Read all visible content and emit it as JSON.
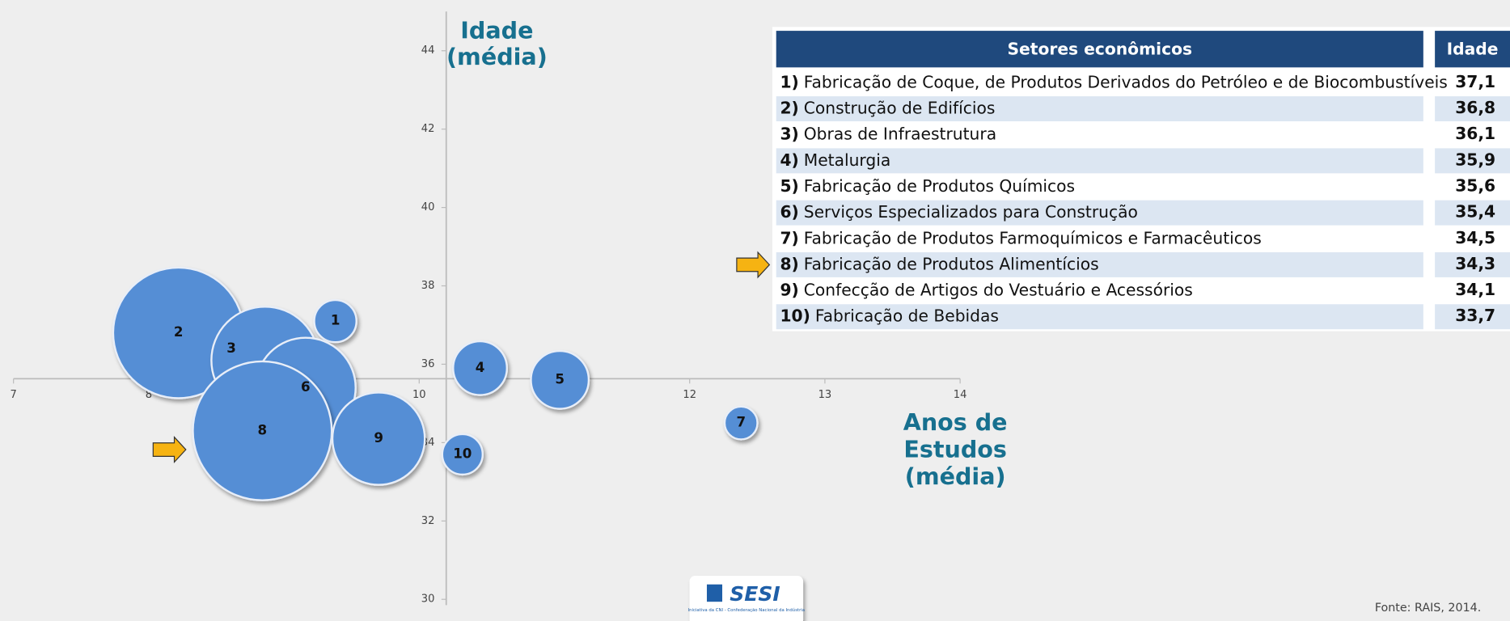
{
  "chart_data": {
    "type": "bubble",
    "y_label_lines": [
      "Idade",
      "(média)"
    ],
    "x_label_lines": [
      "Anos de",
      "Estudos",
      "(média)"
    ],
    "xlim": [
      7,
      14
    ],
    "xticks": [
      7,
      8,
      9,
      10,
      11,
      12,
      13,
      14
    ],
    "ylim": [
      30,
      45
    ],
    "yticks": [
      30,
      32,
      34,
      36,
      38,
      40,
      42,
      44
    ],
    "x_axis_position": 35.63,
    "y_axis_position": 10.2,
    "series": [
      {
        "color": "#558ed5",
        "labels": [
          "1",
          "2",
          "3",
          "4",
          "5",
          "6",
          "7",
          "8",
          "9",
          "10"
        ],
        "x": [
          9.38,
          8.22,
          8.86,
          10.45,
          11.04,
          9.16,
          12.38,
          8.84,
          9.7,
          10.32
        ],
        "y": [
          37.1,
          36.8,
          36.1,
          35.9,
          35.6,
          35.4,
          34.5,
          34.3,
          34.1,
          33.7
        ],
        "size": [
          4.8,
          46,
          31,
          7.8,
          9,
          27,
          2.9,
          52,
          23,
          4.4
        ]
      }
    ]
  },
  "table": {
    "header": [
      "Setores econômicos",
      "Idade"
    ],
    "rows": [
      [
        "1)",
        "Fabricação de Coque, de Produtos Derivados do Petróleo e de Biocombustíveis",
        "37,1"
      ],
      [
        "2)",
        "Construção de Edifícios",
        "36,8"
      ],
      [
        "3)",
        "Obras de Infraestrutura",
        "36,1"
      ],
      [
        "4)",
        "Metalurgia",
        "35,9"
      ],
      [
        "5)",
        "Fabricação de Produtos Químicos",
        "35,6"
      ],
      [
        "6)",
        "Serviços Especializados para Construção",
        "35,4"
      ],
      [
        "7)",
        "Fabricação de Produtos Farmoquímicos e Farmacêuticos",
        "34,5"
      ],
      [
        "8)",
        "Fabricação de Produtos Alimentícios",
        "34,3"
      ],
      [
        "9)",
        "Confecção de Artigos do Vestuário e Acessórios",
        "34,1"
      ],
      [
        "10)",
        "Fabricação de Bebidas",
        "33,7"
      ]
    ]
  },
  "logo": {
    "name": "SESI",
    "tagline": "Iniciativa da CNI - Confederação Nacional da Indústria"
  },
  "source": "Fonte: RAIS, 2014."
}
